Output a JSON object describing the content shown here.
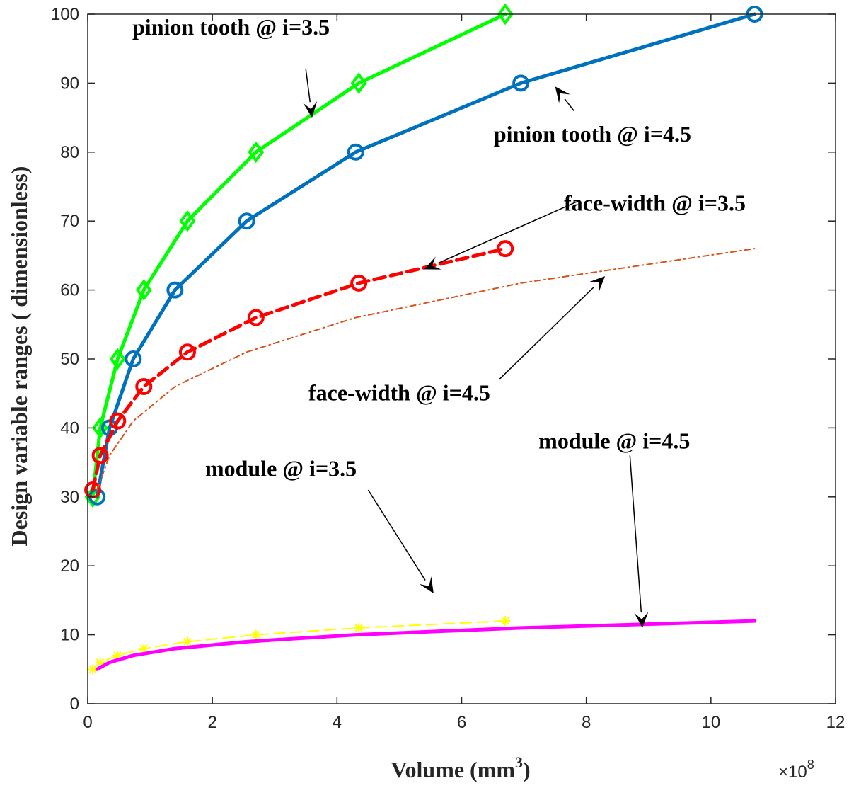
{
  "chart_data": {
    "type": "line",
    "xlabel": "Volume (mm",
    "xlabel_sup": "3",
    "xlabel_close": ")",
    "x_exponent_prefix": "×10",
    "x_exponent_power": "8",
    "ylabel": "Design variable ranges ( dimensionless)",
    "xlim": [
      0,
      12
    ],
    "ylim": [
      0,
      100
    ],
    "xticks": [
      "0",
      "2",
      "4",
      "6",
      "8",
      "10",
      "12"
    ],
    "yticks": [
      "0",
      "10",
      "20",
      "30",
      "40",
      "50",
      "60",
      "70",
      "80",
      "90",
      "100"
    ],
    "grid": false,
    "series": [
      {
        "name": "pinion tooth @ i=3.5",
        "color": "#00ff00",
        "style": "solid",
        "marker": "diamond",
        "x": [
          0.08,
          0.2,
          0.48,
          0.9,
          1.6,
          2.7,
          4.35,
          6.7
        ],
        "y": [
          30,
          40,
          50,
          60,
          70,
          80,
          90,
          100
        ]
      },
      {
        "name": "pinion tooth @ i=4.5",
        "color": "#0072bd",
        "style": "solid",
        "marker": "circle",
        "x": [
          0.15,
          0.35,
          0.73,
          1.4,
          2.55,
          4.3,
          6.95,
          10.7
        ],
        "y": [
          30,
          40,
          50,
          60,
          70,
          80,
          90,
          100
        ]
      },
      {
        "name": "face-width @ i=3.5",
        "color": "#ff0000",
        "style": "dashed",
        "marker": "circle",
        "x": [
          0.08,
          0.2,
          0.48,
          0.9,
          1.6,
          2.7,
          4.35,
          6.7
        ],
        "y": [
          31,
          36,
          41,
          46,
          51,
          56,
          61,
          66
        ]
      },
      {
        "name": "face-width @ i=4.5",
        "color": "#d95319",
        "style": "dashdot",
        "marker": "none",
        "x": [
          0.15,
          0.35,
          0.73,
          1.4,
          2.55,
          4.3,
          6.95,
          10.7
        ],
        "y": [
          31,
          36,
          41,
          46,
          51,
          56,
          61,
          66
        ]
      },
      {
        "name": "module @ i=3.5",
        "color": "#ffff00",
        "style": "dashed",
        "marker": "star",
        "x": [
          0.08,
          0.2,
          0.48,
          0.9,
          1.6,
          2.7,
          4.35,
          6.7
        ],
        "y": [
          5,
          6,
          7,
          8,
          9,
          10,
          11,
          12
        ]
      },
      {
        "name": "module @ i=4.5",
        "color": "#ff00ff",
        "style": "solid",
        "marker": "none",
        "x": [
          0.15,
          0.35,
          0.73,
          1.4,
          2.55,
          4.3,
          6.95,
          10.7
        ],
        "y": [
          5,
          6,
          7,
          8,
          9,
          10,
          11,
          12
        ]
      }
    ],
    "annotations": [
      {
        "text": "pinion tooth @ i=3.5",
        "text_at": [
          2.3,
          97
        ],
        "arrow_from": [
          3.5,
          92
        ],
        "arrow_to": [
          3.6,
          85
        ]
      },
      {
        "text": "pinion tooth @ i=4.5",
        "text_at": [
          8.1,
          81.5
        ],
        "arrow_from": [
          7.8,
          86
        ],
        "arrow_to": [
          7.5,
          89.5
        ]
      },
      {
        "text": "face-width @ i=3.5",
        "text_at": [
          9.1,
          71.5
        ],
        "arrow_from": [
          7.9,
          73
        ],
        "arrow_to": [
          5.4,
          63
        ]
      },
      {
        "text": "face-width @ i=4.5",
        "text_at": [
          5.0,
          44
        ],
        "arrow_from": [
          6.6,
          47
        ],
        "arrow_to": [
          8.3,
          62
        ]
      },
      {
        "text": "module @ i=3.5",
        "text_at": [
          3.1,
          33
        ],
        "arrow_from": [
          4.5,
          31
        ],
        "arrow_to": [
          5.55,
          16
        ]
      },
      {
        "text": "module @ i=4.5",
        "text_at": [
          8.45,
          37
        ],
        "arrow_from": [
          8.7,
          36
        ],
        "arrow_to": [
          8.9,
          11
        ]
      }
    ]
  }
}
